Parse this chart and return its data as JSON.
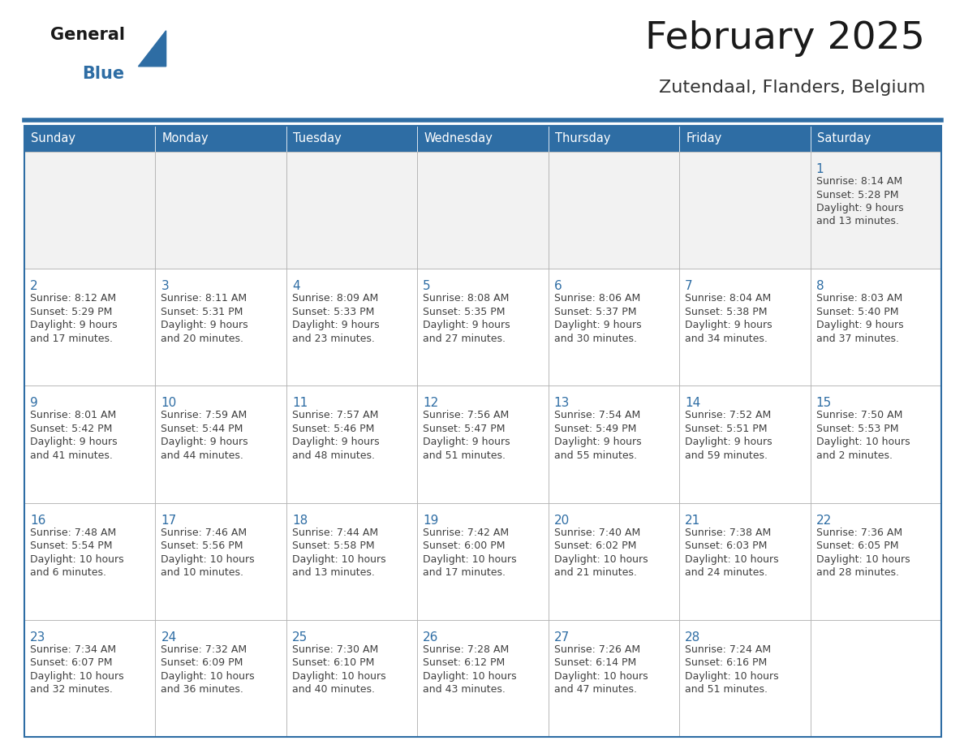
{
  "title": "February 2025",
  "subtitle": "Zutendaal, Flanders, Belgium",
  "header_bg": "#2E6DA4",
  "header_text_color": "#FFFFFF",
  "day_number_color": "#2E6DA4",
  "info_text_color": "#404040",
  "border_color": "#2E6DA4",
  "cell_border_color": "#AAAAAA",
  "days_of_week": [
    "Sunday",
    "Monday",
    "Tuesday",
    "Wednesday",
    "Thursday",
    "Friday",
    "Saturday"
  ],
  "title_color": "#1a1a1a",
  "subtitle_color": "#333333",
  "logo_general_color": "#1a1a1a",
  "logo_blue_color": "#2E6DA4",
  "row1_bg": "#F2F2F2",
  "row_bg": "#FFFFFF",
  "calendar_data": [
    [
      null,
      null,
      null,
      null,
      null,
      null,
      {
        "day": "1",
        "sunrise": "8:14 AM",
        "sunset": "5:28 PM",
        "daylight1": "9 hours",
        "daylight2": "and 13 minutes."
      }
    ],
    [
      {
        "day": "2",
        "sunrise": "8:12 AM",
        "sunset": "5:29 PM",
        "daylight1": "9 hours",
        "daylight2": "and 17 minutes."
      },
      {
        "day": "3",
        "sunrise": "8:11 AM",
        "sunset": "5:31 PM",
        "daylight1": "9 hours",
        "daylight2": "and 20 minutes."
      },
      {
        "day": "4",
        "sunrise": "8:09 AM",
        "sunset": "5:33 PM",
        "daylight1": "9 hours",
        "daylight2": "and 23 minutes."
      },
      {
        "day": "5",
        "sunrise": "8:08 AM",
        "sunset": "5:35 PM",
        "daylight1": "9 hours",
        "daylight2": "and 27 minutes."
      },
      {
        "day": "6",
        "sunrise": "8:06 AM",
        "sunset": "5:37 PM",
        "daylight1": "9 hours",
        "daylight2": "and 30 minutes."
      },
      {
        "day": "7",
        "sunrise": "8:04 AM",
        "sunset": "5:38 PM",
        "daylight1": "9 hours",
        "daylight2": "and 34 minutes."
      },
      {
        "day": "8",
        "sunrise": "8:03 AM",
        "sunset": "5:40 PM",
        "daylight1": "9 hours",
        "daylight2": "and 37 minutes."
      }
    ],
    [
      {
        "day": "9",
        "sunrise": "8:01 AM",
        "sunset": "5:42 PM",
        "daylight1": "9 hours",
        "daylight2": "and 41 minutes."
      },
      {
        "day": "10",
        "sunrise": "7:59 AM",
        "sunset": "5:44 PM",
        "daylight1": "9 hours",
        "daylight2": "and 44 minutes."
      },
      {
        "day": "11",
        "sunrise": "7:57 AM",
        "sunset": "5:46 PM",
        "daylight1": "9 hours",
        "daylight2": "and 48 minutes."
      },
      {
        "day": "12",
        "sunrise": "7:56 AM",
        "sunset": "5:47 PM",
        "daylight1": "9 hours",
        "daylight2": "and 51 minutes."
      },
      {
        "day": "13",
        "sunrise": "7:54 AM",
        "sunset": "5:49 PM",
        "daylight1": "9 hours",
        "daylight2": "and 55 minutes."
      },
      {
        "day": "14",
        "sunrise": "7:52 AM",
        "sunset": "5:51 PM",
        "daylight1": "9 hours",
        "daylight2": "and 59 minutes."
      },
      {
        "day": "15",
        "sunrise": "7:50 AM",
        "sunset": "5:53 PM",
        "daylight1": "10 hours",
        "daylight2": "and 2 minutes."
      }
    ],
    [
      {
        "day": "16",
        "sunrise": "7:48 AM",
        "sunset": "5:54 PM",
        "daylight1": "10 hours",
        "daylight2": "and 6 minutes."
      },
      {
        "day": "17",
        "sunrise": "7:46 AM",
        "sunset": "5:56 PM",
        "daylight1": "10 hours",
        "daylight2": "and 10 minutes."
      },
      {
        "day": "18",
        "sunrise": "7:44 AM",
        "sunset": "5:58 PM",
        "daylight1": "10 hours",
        "daylight2": "and 13 minutes."
      },
      {
        "day": "19",
        "sunrise": "7:42 AM",
        "sunset": "6:00 PM",
        "daylight1": "10 hours",
        "daylight2": "and 17 minutes."
      },
      {
        "day": "20",
        "sunrise": "7:40 AM",
        "sunset": "6:02 PM",
        "daylight1": "10 hours",
        "daylight2": "and 21 minutes."
      },
      {
        "day": "21",
        "sunrise": "7:38 AM",
        "sunset": "6:03 PM",
        "daylight1": "10 hours",
        "daylight2": "and 24 minutes."
      },
      {
        "day": "22",
        "sunrise": "7:36 AM",
        "sunset": "6:05 PM",
        "daylight1": "10 hours",
        "daylight2": "and 28 minutes."
      }
    ],
    [
      {
        "day": "23",
        "sunrise": "7:34 AM",
        "sunset": "6:07 PM",
        "daylight1": "10 hours",
        "daylight2": "and 32 minutes."
      },
      {
        "day": "24",
        "sunrise": "7:32 AM",
        "sunset": "6:09 PM",
        "daylight1": "10 hours",
        "daylight2": "and 36 minutes."
      },
      {
        "day": "25",
        "sunrise": "7:30 AM",
        "sunset": "6:10 PM",
        "daylight1": "10 hours",
        "daylight2": "and 40 minutes."
      },
      {
        "day": "26",
        "sunrise": "7:28 AM",
        "sunset": "6:12 PM",
        "daylight1": "10 hours",
        "daylight2": "and 43 minutes."
      },
      {
        "day": "27",
        "sunrise": "7:26 AM",
        "sunset": "6:14 PM",
        "daylight1": "10 hours",
        "daylight2": "and 47 minutes."
      },
      {
        "day": "28",
        "sunrise": "7:24 AM",
        "sunset": "6:16 PM",
        "daylight1": "10 hours",
        "daylight2": "and 51 minutes."
      },
      null
    ]
  ]
}
